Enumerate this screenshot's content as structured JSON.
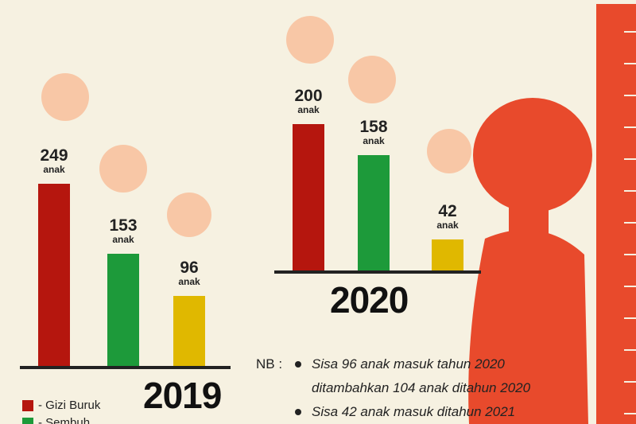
{
  "chart_data": [
    {
      "type": "bar",
      "title": "2019",
      "values": [
        249,
        153,
        96
      ],
      "value_labels": [
        "249\nanak",
        "153\nanak",
        "96\nanak"
      ],
      "colors": [
        "#b5160e",
        "#1d9a3a",
        "#e0b800"
      ],
      "legend": [
        {
          "label": "- Gizi Buruk",
          "color": "#b5160e"
        },
        {
          "label": "- Sembuh",
          "color": "#1d9a3a"
        }
      ]
    },
    {
      "type": "bar",
      "title": "2020",
      "values": [
        200,
        158,
        42
      ],
      "value_labels": [
        "200\nanak",
        "158\nanak",
        "42\nanak"
      ],
      "colors": [
        "#b5160e",
        "#1d9a3a",
        "#e0b800"
      ]
    }
  ],
  "notes": {
    "label": "NB :",
    "items": [
      "Sisa 96 anak masuk tahun 2020",
      "ditambahkan 104 anak ditahun 2020",
      "Sisa 42 anak masuk ditahun 2021"
    ]
  }
}
